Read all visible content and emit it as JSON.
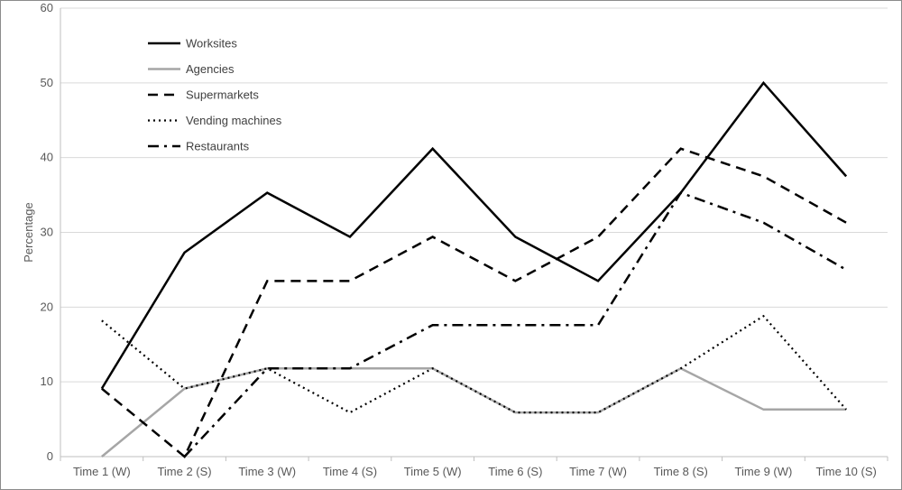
{
  "chart_data": {
    "type": "line",
    "title": "",
    "xlabel": "",
    "ylabel": "Percentage",
    "ylim": [
      0,
      60
    ],
    "yticks": [
      0,
      10,
      20,
      30,
      40,
      50,
      60
    ],
    "grid": true,
    "legend_position": "top-left",
    "categories": [
      "Time 1 (W)",
      "Time 2 (S)",
      "Time 3 (W)",
      "Time 4 (S)",
      "Time 5 (W)",
      "Time 6 (S)",
      "Time 7 (W)",
      "Time 8 (S)",
      "Time 9 (W)",
      "Time 10 (S)"
    ],
    "series": [
      {
        "name": "Worksites",
        "color": "#000000",
        "style": "solid",
        "values": [
          9.1,
          27.3,
          35.3,
          29.4,
          41.2,
          29.4,
          23.5,
          35.3,
          50.0,
          37.5
        ]
      },
      {
        "name": "Agencies",
        "color": "#a6a6a6",
        "style": "solid",
        "values": [
          0.0,
          9.1,
          11.8,
          11.8,
          11.8,
          5.9,
          5.9,
          11.8,
          6.3,
          6.3
        ]
      },
      {
        "name": "Supermarkets",
        "color": "#000000",
        "style": "dashed",
        "values": [
          9.1,
          0.0,
          23.5,
          23.5,
          29.4,
          23.5,
          29.4,
          41.2,
          37.5,
          31.3
        ]
      },
      {
        "name": "Vending machines",
        "color": "#000000",
        "style": "dotted",
        "values": [
          18.2,
          9.1,
          11.8,
          5.9,
          11.8,
          5.9,
          5.9,
          11.8,
          18.8,
          6.3
        ]
      },
      {
        "name": "Restaurants",
        "color": "#000000",
        "style": "dashdot",
        "values": [
          null,
          0.0,
          11.8,
          11.8,
          17.6,
          17.6,
          17.6,
          35.3,
          31.3,
          25.0
        ]
      }
    ]
  }
}
